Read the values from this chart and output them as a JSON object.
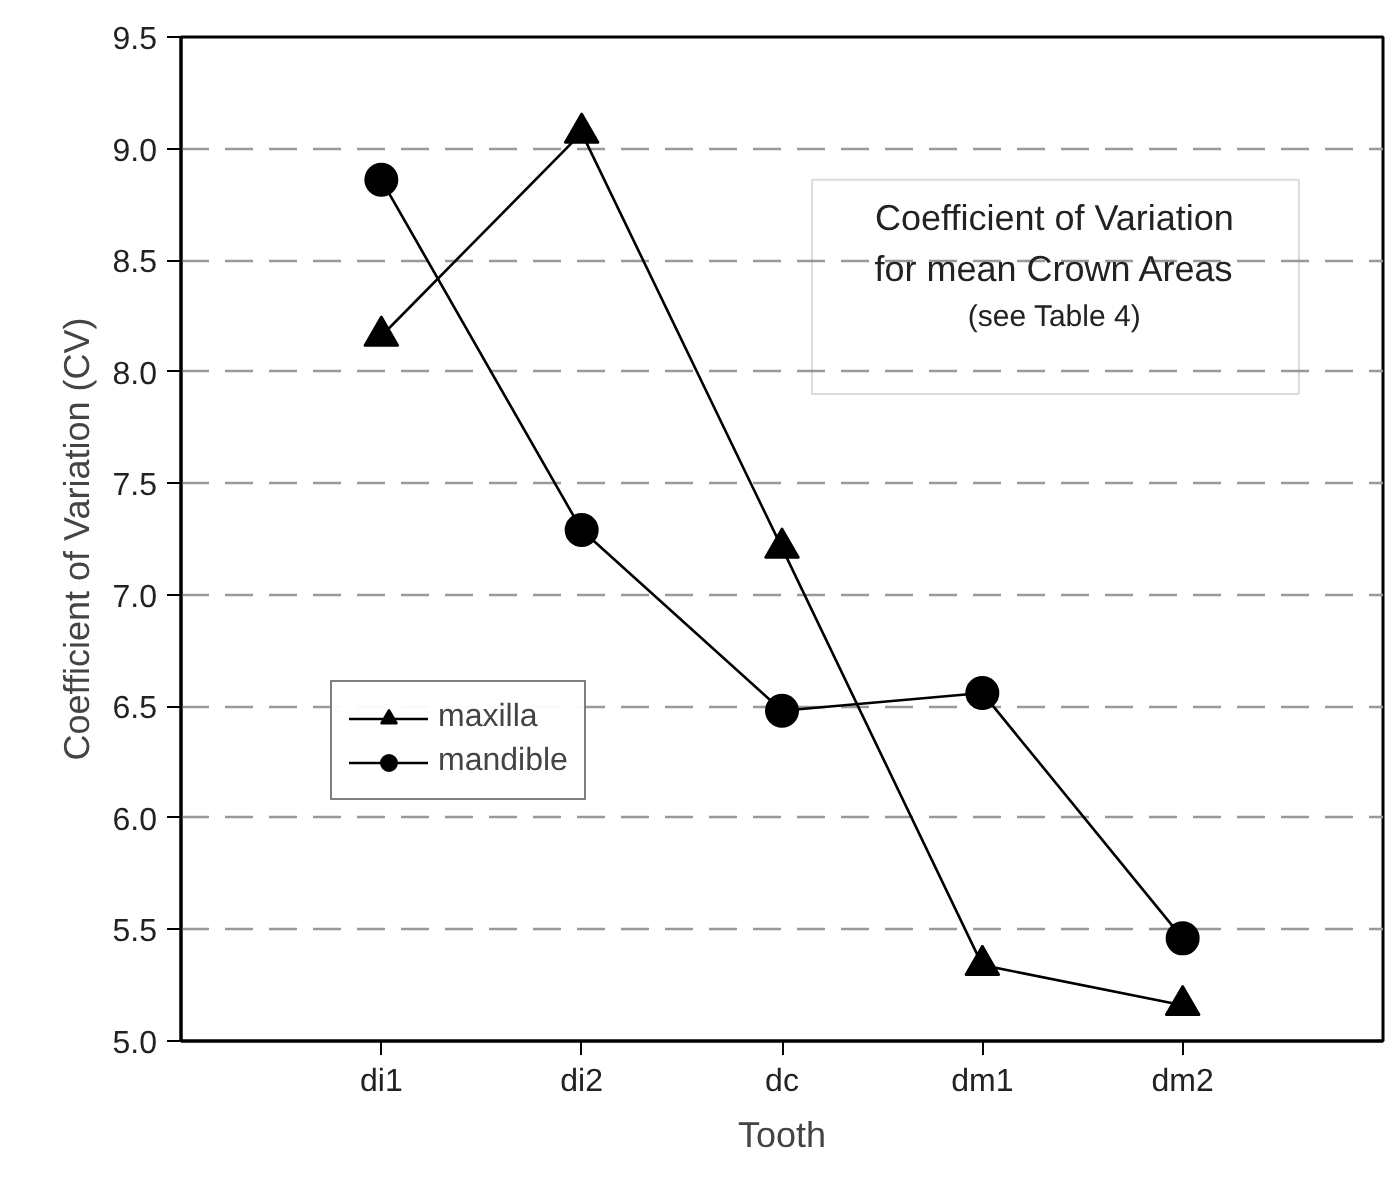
{
  "chart_data": {
    "type": "line",
    "xlabel": "Tooth",
    "ylabel": "Coefficient of Variation (CV)",
    "categories": [
      "di1",
      "di2",
      "dc",
      "dm1",
      "dm2"
    ],
    "series": [
      {
        "name": "maxilla",
        "color": "#000000",
        "marker": "triangle",
        "values": [
          8.16,
          9.07,
          7.21,
          5.34,
          5.16
        ]
      },
      {
        "name": "mandible",
        "color": "#000000",
        "marker": "circle",
        "values": [
          8.86,
          7.29,
          6.48,
          6.56,
          5.46
        ]
      }
    ],
    "ylim": [
      5.0,
      9.5
    ],
    "yticks": [
      {
        "value": 5.0,
        "label": "5.0"
      },
      {
        "value": 5.5,
        "label": "5.5"
      },
      {
        "value": 6.0,
        "label": "6.0"
      },
      {
        "value": 6.5,
        "label": "6.5"
      },
      {
        "value": 7.0,
        "label": "7.0"
      },
      {
        "value": 7.5,
        "label": "7.5"
      },
      {
        "value": 8.0,
        "label": "8.0"
      },
      {
        "value": 8.5,
        "label": "8.5"
      },
      {
        "value": 9.0,
        "label": "9.0"
      },
      {
        "value": 9.5,
        "label": "9.5"
      }
    ],
    "grid": "y",
    "legend": "bottom left",
    "line_style": "solid",
    "annotations": [
      "Coefficient of Variation\nfor mean Crown Areas",
      "(see Table 4)"
    ]
  }
}
